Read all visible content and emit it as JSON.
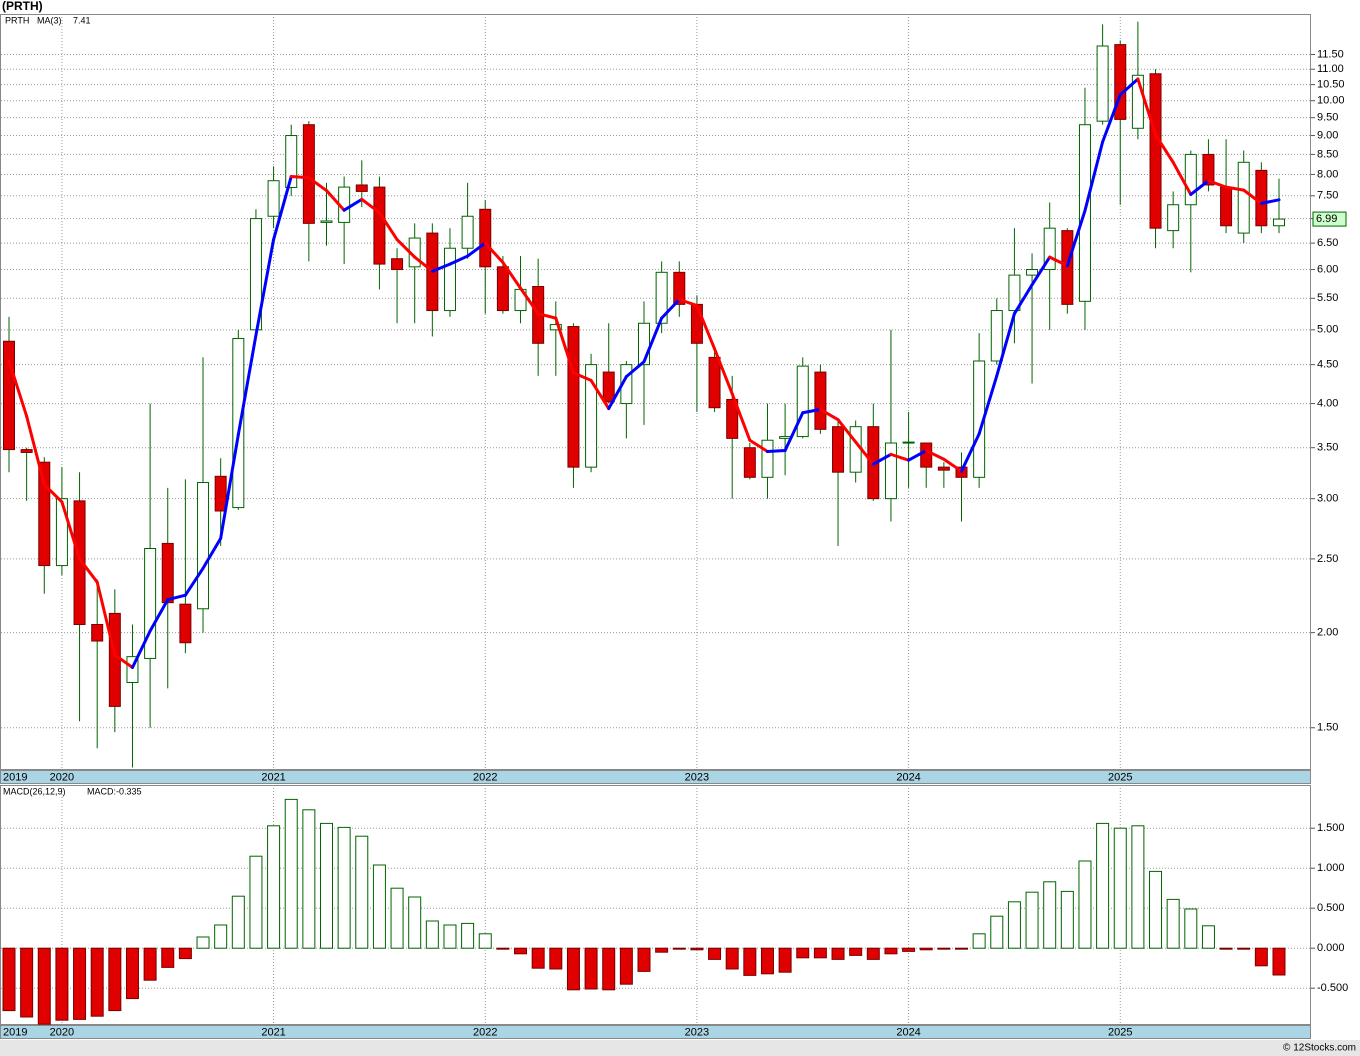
{
  "chart_data": [
    {
      "type": "candlestick",
      "title": "(PRTH)",
      "categories": [
        "2019",
        null,
        null,
        "2020",
        null,
        null,
        null,
        null,
        null,
        null,
        null,
        null,
        null,
        null,
        null,
        "2021",
        null,
        null,
        null,
        null,
        null,
        null,
        null,
        null,
        null,
        null,
        null,
        "2022",
        null,
        null,
        null,
        null,
        null,
        null,
        null,
        null,
        null,
        null,
        null,
        "2023",
        null,
        null,
        null,
        null,
        null,
        null,
        null,
        null,
        null,
        null,
        null,
        "2024",
        null,
        null,
        null,
        null,
        null,
        null,
        null,
        null,
        null,
        null,
        null,
        "2025",
        null,
        null,
        null,
        null,
        null,
        null,
        null,
        null,
        null
      ],
      "series": [
        {
          "name": "PRTH",
          "color": "#006400",
          "up_color": "#006400",
          "down_color": "#e00000",
          "open": [
            4.83,
            3.48,
            3.35,
            2.45,
            2.98,
            2.05,
            2.12,
            1.72,
            1.85,
            2.62,
            2.18,
            2.15,
            3.21,
            2.92,
            5.0,
            7.05,
            7.69,
            9.3,
            6.92,
            6.92,
            7.75,
            7.7,
            6.2,
            6.05,
            6.7,
            5.3,
            6.4,
            7.2,
            6.05,
            5.3,
            5.7,
            5.0,
            5.05,
            3.3,
            4.4,
            4.0,
            4.5,
            5.1,
            5.95,
            5.4,
            4.6,
            4.05,
            3.5,
            3.2,
            3.6,
            3.62,
            4.4,
            3.73,
            3.25,
            3.73,
            3.0,
            3.55,
            3.55,
            3.3,
            3.3,
            3.2,
            4.55,
            5.3,
            5.9,
            6.0,
            6.75,
            5.45,
            9.4,
            11.85,
            9.2,
            10.85,
            6.75,
            7.3,
            8.5,
            7.7,
            6.7,
            8.1,
            6.85
          ],
          "high": [
            5.2,
            3.5,
            3.4,
            3.3,
            3.25,
            2.35,
            2.28,
            2.05,
            4.0,
            3.1,
            3.18,
            4.6,
            3.39,
            5.0,
            7.2,
            8.2,
            9.3,
            9.4,
            7.8,
            7.95,
            8.35,
            7.95,
            6.4,
            6.9,
            6.9,
            6.8,
            7.8,
            7.4,
            6.25,
            6.25,
            6.2,
            5.45,
            5.1,
            4.65,
            5.1,
            4.55,
            5.45,
            6.15,
            6.15,
            5.55,
            4.75,
            4.35,
            3.55,
            4.0,
            4.0,
            4.6,
            4.5,
            3.8,
            3.8,
            4.0,
            5.0,
            3.9,
            3.55,
            3.35,
            3.45,
            4.95,
            5.5,
            6.8,
            6.3,
            7.35,
            6.8,
            10.4,
            12.6,
            12.0,
            12.7,
            11.0,
            7.6,
            8.6,
            8.9,
            8.9,
            8.6,
            8.3,
            7.9
          ],
          "low": [
            3.25,
            2.98,
            2.25,
            2.38,
            1.53,
            1.41,
            1.48,
            1.33,
            1.5,
            1.69,
            1.88,
            2.0,
            2.6,
            2.9,
            4.85,
            6.8,
            7.5,
            6.15,
            6.45,
            6.1,
            7.25,
            5.65,
            5.1,
            5.1,
            4.9,
            5.2,
            6.2,
            5.25,
            5.25,
            5.1,
            4.35,
            4.35,
            3.1,
            3.25,
            4.0,
            3.6,
            3.75,
            4.95,
            5.2,
            3.9,
            3.9,
            3.0,
            3.18,
            3.0,
            3.22,
            3.6,
            3.65,
            2.6,
            3.15,
            2.98,
            2.8,
            3.1,
            3.1,
            3.1,
            2.8,
            3.1,
            4.5,
            4.8,
            4.25,
            5.0,
            5.25,
            5.0,
            9.3,
            7.3,
            8.9,
            6.4,
            6.4,
            5.95,
            7.6,
            6.7,
            6.5,
            6.7,
            6.7
          ],
          "close": [
            3.48,
            3.45,
            2.45,
            3.0,
            2.05,
            1.95,
            1.6,
            1.86,
            2.58,
            2.19,
            1.94,
            3.15,
            2.89,
            4.87,
            7.0,
            7.85,
            9.0,
            6.9,
            6.95,
            7.7,
            7.6,
            6.1,
            6.0,
            6.6,
            5.3,
            6.4,
            7.05,
            6.05,
            5.3,
            5.65,
            4.8,
            5.08,
            3.3,
            4.5,
            4.02,
            4.5,
            5.1,
            5.95,
            5.4,
            4.8,
            3.95,
            3.6,
            3.2,
            3.58,
            3.62,
            4.48,
            3.7,
            3.25,
            3.73,
            3.0,
            3.55,
            3.56,
            3.3,
            3.27,
            3.2,
            4.55,
            5.3,
            5.9,
            6.0,
            6.8,
            5.4,
            9.3,
            11.8,
            9.45,
            10.8,
            6.8,
            7.3,
            8.5,
            7.75,
            6.85,
            8.3,
            6.85,
            6.99
          ]
        },
        {
          "name": "MA(3)",
          "color": "#0000ff",
          "up_color": "#0000ff",
          "down_color": "#ff0000",
          "values": [
            4.55,
            3.85,
            3.13,
            2.97,
            2.5,
            2.33,
            1.87,
            1.8,
            2.01,
            2.21,
            2.24,
            2.43,
            2.66,
            3.64,
            4.92,
            6.57,
            7.95,
            7.92,
            7.62,
            7.18,
            7.42,
            7.13,
            6.57,
            6.23,
            5.97,
            6.1,
            6.25,
            6.5,
            6.13,
            5.67,
            5.25,
            5.18,
            4.39,
            4.29,
            3.94,
            4.34,
            4.54,
            5.18,
            5.48,
            5.38,
            4.72,
            4.12,
            3.58,
            3.46,
            3.47,
            3.89,
            3.93,
            3.81,
            3.56,
            3.33,
            3.43,
            3.37,
            3.47,
            3.38,
            3.26,
            3.65,
            4.35,
            5.25,
            5.73,
            6.23,
            6.07,
            7.17,
            8.83,
            10.18,
            10.68,
            9.02,
            8.3,
            7.53,
            7.85,
            7.7,
            7.63,
            7.33,
            7.41
          ]
        }
      ],
      "ylim": [
        1.32,
        13.0
      ],
      "log_scale": true,
      "grid": true,
      "last_price_color": "#ccffcc",
      "yticks": [
        {
          "value": 1.5,
          "label": "1.50"
        },
        {
          "value": 2,
          "label": "2.00"
        },
        {
          "value": 2.5,
          "label": "2.50"
        },
        {
          "value": 3,
          "label": "3.00"
        },
        {
          "value": 3.5,
          "label": "3.50"
        },
        {
          "value": 4,
          "label": "4.00"
        },
        {
          "value": 4.5,
          "label": "4.50"
        },
        {
          "value": 5,
          "label": "5.00"
        },
        {
          "value": 5.5,
          "label": "5.50"
        },
        {
          "value": 6,
          "label": "6.00"
        },
        {
          "value": 6.5,
          "label": "6.50"
        },
        {
          "value": 7,
          "label": "7.00"
        },
        {
          "value": 7.5,
          "label": "7.50"
        },
        {
          "value": 8,
          "label": "8.00"
        },
        {
          "value": 8.5,
          "label": "8.50"
        },
        {
          "value": 9,
          "label": "9.00"
        },
        {
          "value": 9.5,
          "label": "9.50"
        },
        {
          "value": 10,
          "label": "10.00"
        },
        {
          "value": 10.5,
          "label": "10.50"
        },
        {
          "value": 11,
          "label": "11.00"
        },
        {
          "value": 11.5,
          "label": "11.50"
        }
      ]
    },
    {
      "type": "bar",
      "series": [
        {
          "name": "MACD(26,12,9)",
          "last_label": "MACD:-0.335",
          "color": "#0000ff",
          "up_color": "#006400",
          "down_color": "#e00000",
          "values": [
            -0.78,
            -0.86,
            -0.95,
            -0.9,
            -0.89,
            -0.85,
            -0.78,
            -0.63,
            -0.4,
            -0.24,
            -0.13,
            0.14,
            0.29,
            0.65,
            1.15,
            1.53,
            1.86,
            1.73,
            1.56,
            1.51,
            1.4,
            1.04,
            0.75,
            0.64,
            0.34,
            0.29,
            0.31,
            0.18,
            -0.01,
            -0.07,
            -0.25,
            -0.26,
            -0.52,
            -0.51,
            -0.52,
            -0.45,
            -0.29,
            -0.05,
            -0.01,
            -0.02,
            -0.14,
            -0.26,
            -0.34,
            -0.32,
            -0.3,
            -0.12,
            -0.12,
            -0.14,
            -0.09,
            -0.14,
            -0.07,
            -0.04,
            -0.02,
            -0.01,
            -0.01,
            0.18,
            0.4,
            0.58,
            0.7,
            0.83,
            0.71,
            1.09,
            1.56,
            1.5,
            1.53,
            0.96,
            0.61,
            0.49,
            0.28,
            -0.01,
            -0.01,
            -0.22,
            -0.335
          ]
        }
      ],
      "ylim": [
        -0.96,
        2.04
      ],
      "grid": true,
      "yticks": [
        {
          "value": -0.5,
          "label": "-0.500"
        },
        {
          "value": 0,
          "label": "0.000"
        },
        {
          "value": 0.5,
          "label": "0.500"
        },
        {
          "value": 1,
          "label": "1.000"
        },
        {
          "value": 1.5,
          "label": "1.500"
        }
      ]
    }
  ],
  "footer": "© 12Stocks.com"
}
